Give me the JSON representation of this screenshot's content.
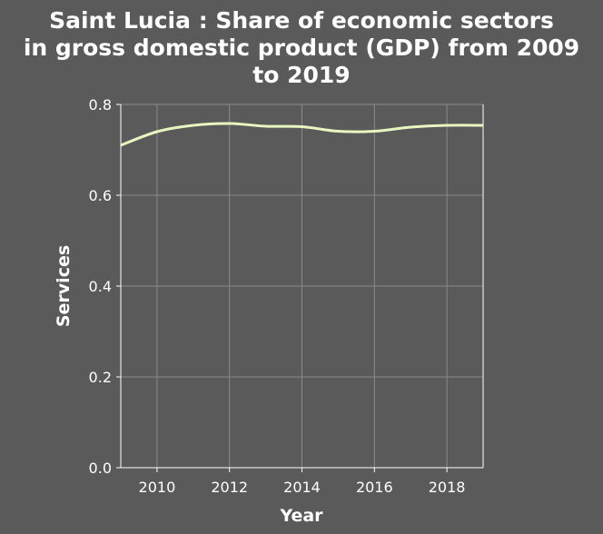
{
  "chart_data": {
    "type": "line",
    "title_lines": [
      "Saint Lucia : Share of economic sectors",
      "in gross domestic product (GDP) from 2009",
      "to 2019"
    ],
    "xlabel": "Year",
    "ylabel": "Services",
    "xlim": [
      2009,
      2019
    ],
    "ylim": [
      0,
      0.8
    ],
    "xticks": [
      2010,
      2012,
      2014,
      2016,
      2018
    ],
    "xtick_labels": [
      "2010",
      "2012",
      "2014",
      "2016",
      "2018"
    ],
    "yticks": [
      0,
      0.2,
      0.4,
      0.6,
      0.8
    ],
    "ytick_labels": [
      "0.0",
      "0.2",
      "0.4",
      "0.6",
      "0.8"
    ],
    "grid": true,
    "series": [
      {
        "x": [
          2009,
          2010,
          2011,
          2012,
          2013,
          2014,
          2015,
          2016,
          2017,
          2018,
          2019
        ],
        "values": [
          0.71,
          0.74,
          0.754,
          0.758,
          0.752,
          0.751,
          0.741,
          0.741,
          0.75,
          0.754,
          0.754
        ],
        "color": "#e8f5c0"
      }
    ],
    "colors": {
      "background": "#5a5a5a",
      "grid": "#8a8a8a",
      "text": "#ffffff"
    }
  }
}
